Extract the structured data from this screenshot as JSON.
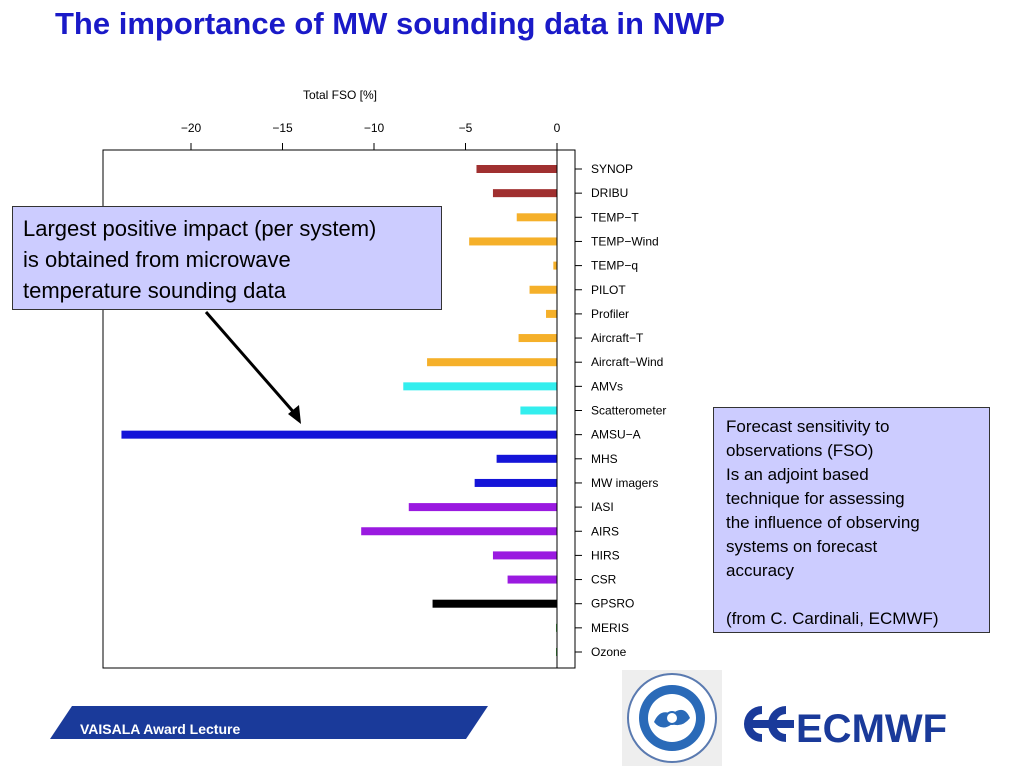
{
  "slide": {
    "title": "The importance of MW sounding data in NWP",
    "callout_left": [
      "Largest positive impact (per system)",
      "is obtained from microwave",
      "temperature sounding data"
    ],
    "callout_right": [
      "Forecast sensitivity to",
      "observations (FSO)",
      "Is an adjoint based",
      "technique for assessing",
      "the influence of observing",
      "systems on forecast",
      "accuracy",
      "",
      "(from C.  Cardinali, ECMWF)"
    ],
    "footer": "VAISALA Award Lecture",
    "logos": {
      "cma": "CHINA METEOROLOGICAL ADMINISTRATION",
      "ecmwf": "ECMWF"
    }
  },
  "colors": {
    "title": "#1a1ac8",
    "callout_bg": "#ccccff",
    "footer_bg": "#1a3a9a",
    "ecmwf": "#1a3a9a"
  },
  "chart_data": {
    "type": "bar",
    "orientation": "horizontal",
    "title": "Total FSO [%]",
    "xlim": [
      -24.5,
      1
    ],
    "xticks": [
      -20,
      -15,
      -10,
      -5,
      0
    ],
    "xtick_labels": [
      "−20",
      "−15",
      "−10",
      "−5",
      "0"
    ],
    "categories": [
      "SYNOP",
      "DRIBU",
      "TEMP−T",
      "TEMP−Wind",
      "TEMP−q",
      "PILOT",
      "Profiler",
      "Aircraft−T",
      "Aircraft−Wind",
      "AMVs",
      "Scatterometer",
      "AMSU−A",
      "MHS",
      "MW imagers",
      "IASI",
      "AIRS",
      "HIRS",
      "CSR",
      "GPSRO",
      "MERIS",
      "Ozone"
    ],
    "values": [
      -4.4,
      -3.5,
      -2.2,
      -4.8,
      -0.2,
      -1.5,
      -0.6,
      -2.1,
      -7.1,
      -8.4,
      -2.0,
      -23.8,
      -3.3,
      -4.5,
      -8.1,
      -10.7,
      -3.5,
      -2.7,
      -6.8,
      -0.05,
      -0.05
    ],
    "bar_colors": [
      "#a03030",
      "#a03030",
      "#f5b02a",
      "#f5b02a",
      "#f5b02a",
      "#f5b02a",
      "#f5b02a",
      "#f5b02a",
      "#f5b02a",
      "#33eeee",
      "#33eeee",
      "#1414d8",
      "#1414d8",
      "#1414d8",
      "#9a1ae0",
      "#9a1ae0",
      "#9a1ae0",
      "#9a1ae0",
      "#000000",
      "#2a9a2a",
      "#2a9a2a"
    ],
    "grid": false
  }
}
